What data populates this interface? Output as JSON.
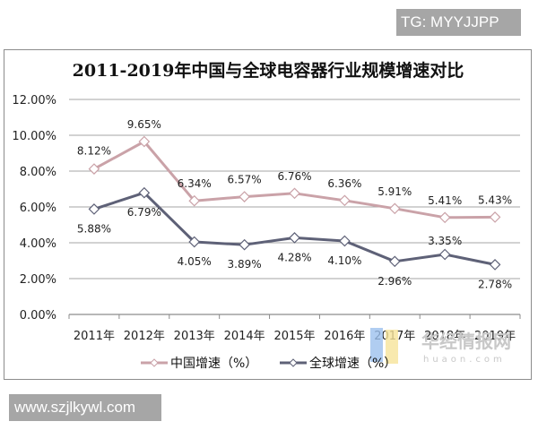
{
  "watermarks": {
    "top_tag": "TG: MYYJJPP",
    "bottom_tag": "www.szjlkywl.com",
    "brand_cn": "华经情报网",
    "brand_url": "huaon.com"
  },
  "chart_data": {
    "type": "line",
    "title": "2011-2019年中国与全球电容器行业规模增速对比",
    "xlabel": "",
    "ylabel": "",
    "categories": [
      "2011年",
      "2012年",
      "2013年",
      "2014年",
      "2015年",
      "2016年",
      "2017年",
      "2018年",
      "2019年"
    ],
    "series": [
      {
        "name": "中国增速（%）",
        "color": "#caa2a8",
        "marker": "diamond-open",
        "values": [
          8.12,
          9.65,
          6.34,
          6.57,
          6.76,
          6.36,
          5.91,
          5.41,
          5.43
        ],
        "labels": [
          "8.12%",
          "9.65%",
          "6.34%",
          "6.57%",
          "6.76%",
          "6.36%",
          "5.91%",
          "5.41%",
          "5.43%"
        ]
      },
      {
        "name": "全球增速（%）",
        "color": "#5e6177",
        "marker": "diamond-open",
        "values": [
          5.88,
          6.79,
          4.05,
          3.89,
          4.28,
          4.1,
          2.96,
          3.35,
          2.78
        ],
        "labels": [
          "5.88%",
          "6.79%",
          "4.05%",
          "3.89%",
          "4.28%",
          "4.10%",
          "2.96%",
          "3.35%",
          "2.78%"
        ]
      }
    ],
    "ylim": [
      0,
      12
    ],
    "yticks": [
      "0.00%",
      "2.00%",
      "4.00%",
      "6.00%",
      "8.00%",
      "10.00%",
      "12.00%"
    ],
    "grid": true,
    "legend_position": "bottom"
  }
}
